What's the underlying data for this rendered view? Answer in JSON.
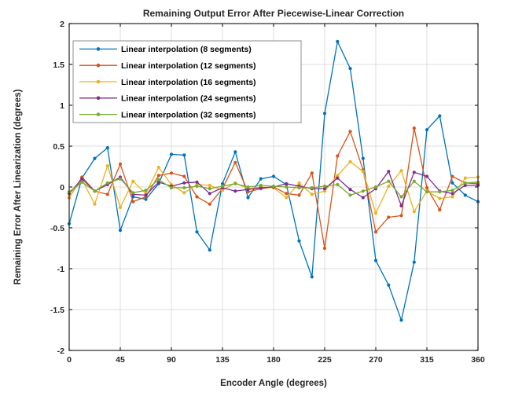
{
  "figure": {
    "background": "#ffffff",
    "axes_box_color": "#262626",
    "grid_color": "#dcdcdc",
    "tick_text_color": "#262626",
    "legend_border_color": "#8c8c8c",
    "legend_background": "#ffffff"
  },
  "chart_data": {
    "type": "line",
    "title": "Remaining Output Error After Piecewise-Linear Correction",
    "xlabel": "Encoder Angle (degrees)",
    "ylabel": "Remaining Error After Linearization (degrees)",
    "xlim": [
      0,
      360
    ],
    "ylim": [
      -2,
      2
    ],
    "x_ticks": [
      0,
      45,
      90,
      135,
      180,
      225,
      270,
      315,
      360
    ],
    "y_ticks": [
      -2,
      -1.5,
      -1,
      -0.5,
      0,
      0.5,
      1,
      1.5,
      2
    ],
    "grid": true,
    "legend_position": "upper-left",
    "marker": "dot",
    "x": [
      0,
      11.25,
      22.5,
      33.75,
      45,
      56.25,
      67.5,
      78.75,
      90,
      101.25,
      112.5,
      123.75,
      135,
      146.25,
      157.5,
      168.75,
      180,
      191.25,
      202.5,
      213.75,
      225,
      236.25,
      247.5,
      258.75,
      270,
      281.25,
      292.5,
      303.75,
      315,
      326.25,
      337.5,
      348.75,
      360
    ],
    "series": [
      {
        "name": "Linear interpolation (8 segments)",
        "color": "#0072BD",
        "values": [
          -0.45,
          0.11,
          0.35,
          0.48,
          -0.53,
          -0.12,
          -0.15,
          0.04,
          0.4,
          0.39,
          -0.55,
          -0.77,
          0.04,
          0.43,
          -0.13,
          0.1,
          0.13,
          0.03,
          -0.66,
          -1.1,
          0.9,
          1.78,
          1.45,
          0.35,
          -0.9,
          -1.2,
          -1.63,
          -0.92,
          0.7,
          0.87,
          0.05,
          -0.1,
          -0.18
        ]
      },
      {
        "name": "Linear interpolation (12 segments)",
        "color": "#D95319",
        "values": [
          -0.13,
          0.12,
          -0.05,
          -0.09,
          0.28,
          -0.18,
          -0.12,
          0.14,
          0.17,
          0.13,
          -0.12,
          -0.21,
          -0.02,
          0.3,
          -0.06,
          -0.02,
          0.0,
          -0.08,
          -0.1,
          0.17,
          -0.75,
          0.38,
          0.68,
          0.21,
          -0.55,
          -0.37,
          -0.35,
          0.72,
          -0.01,
          -0.28,
          0.13,
          0.05,
          0.04
        ]
      },
      {
        "name": "Linear interpolation (16 segments)",
        "color": "#EDB120",
        "values": [
          -0.12,
          0.09,
          -0.21,
          0.26,
          -0.25,
          0.07,
          -0.08,
          0.24,
          0.03,
          -0.07,
          0.03,
          0.02,
          -0.04,
          0.05,
          -0.02,
          0.0,
          -0.01,
          -0.13,
          0.05,
          -0.09,
          -0.05,
          0.14,
          0.31,
          0.19,
          -0.32,
          0.01,
          0.2,
          -0.3,
          -0.05,
          -0.14,
          -0.12,
          0.11,
          0.12
        ]
      },
      {
        "name": "Linear interpolation (24 segments)",
        "color": "#7E2F8E",
        "values": [
          -0.08,
          0.1,
          -0.05,
          0.03,
          0.12,
          -0.09,
          -0.1,
          0.06,
          0.01,
          0.05,
          0.06,
          -0.08,
          -0.01,
          -0.05,
          -0.03,
          -0.01,
          0.0,
          0.04,
          0.01,
          -0.02,
          -0.02,
          0.11,
          -0.03,
          -0.13,
          -0.02,
          0.19,
          -0.23,
          0.18,
          0.13,
          -0.05,
          -0.08,
          0.02,
          0.02
        ]
      },
      {
        "name": "Linear interpolation (32 segments)",
        "color": "#77AC30",
        "values": [
          -0.06,
          0.06,
          -0.05,
          0.05,
          0.1,
          -0.07,
          -0.04,
          0.09,
          -0.01,
          -0.01,
          0.01,
          -0.02,
          0.01,
          0.04,
          0.0,
          0.02,
          0.01,
          0.0,
          -0.01,
          -0.01,
          0.01,
          0.03,
          -0.1,
          -0.05,
          0.0,
          0.07,
          -0.12,
          0.07,
          -0.06,
          -0.06,
          -0.04,
          0.05,
          0.06
        ]
      }
    ]
  }
}
